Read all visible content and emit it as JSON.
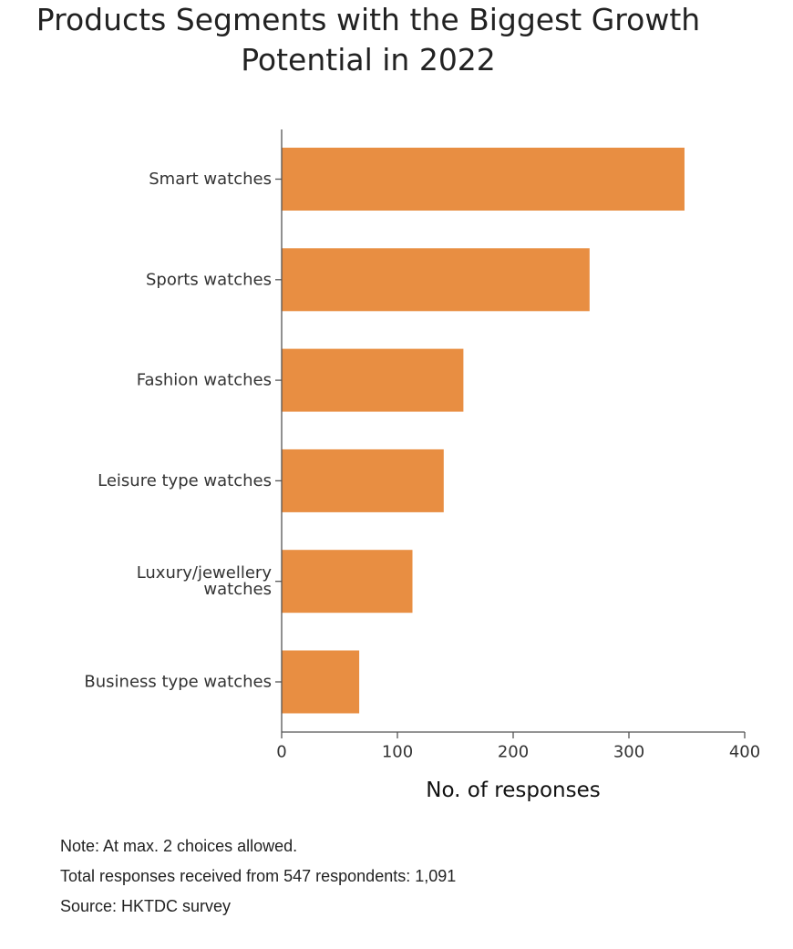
{
  "chart_data": {
    "type": "bar",
    "orientation": "horizontal",
    "title": "Products Segments with the Biggest Growth Potential in 2022",
    "title_lines": [
      "Products Segments with the Biggest Growth",
      "Potential in 2022"
    ],
    "categories": [
      "Smart watches",
      "Sports watches",
      "Fashion watches",
      "Leisure type watches",
      "Luxury/jewellery watches",
      "Business type watches"
    ],
    "category_label_lines": [
      [
        "Smart watches"
      ],
      [
        "Sports watches"
      ],
      [
        "Fashion watches"
      ],
      [
        "Leisure type watches"
      ],
      [
        "Luxury/jewellery",
        "watches"
      ],
      [
        "Business type watches"
      ]
    ],
    "values": [
      348,
      266,
      157,
      140,
      113,
      67
    ],
    "xlabel": "No. of responses",
    "ylabel": "",
    "xlim": [
      0,
      400
    ],
    "xticks": [
      0,
      100,
      200,
      300,
      400
    ],
    "xtick_labels": [
      "0",
      "100",
      "200",
      "300",
      "400"
    ],
    "grid": false,
    "legend": "none",
    "bar_color": "#E88E42",
    "axis_color": "#555555"
  },
  "notes": {
    "note": "Note: At max. 2 choices allowed.",
    "total": "Total responses received from 547 respondents: 1,091",
    "source": "Source: HKTDC survey"
  }
}
